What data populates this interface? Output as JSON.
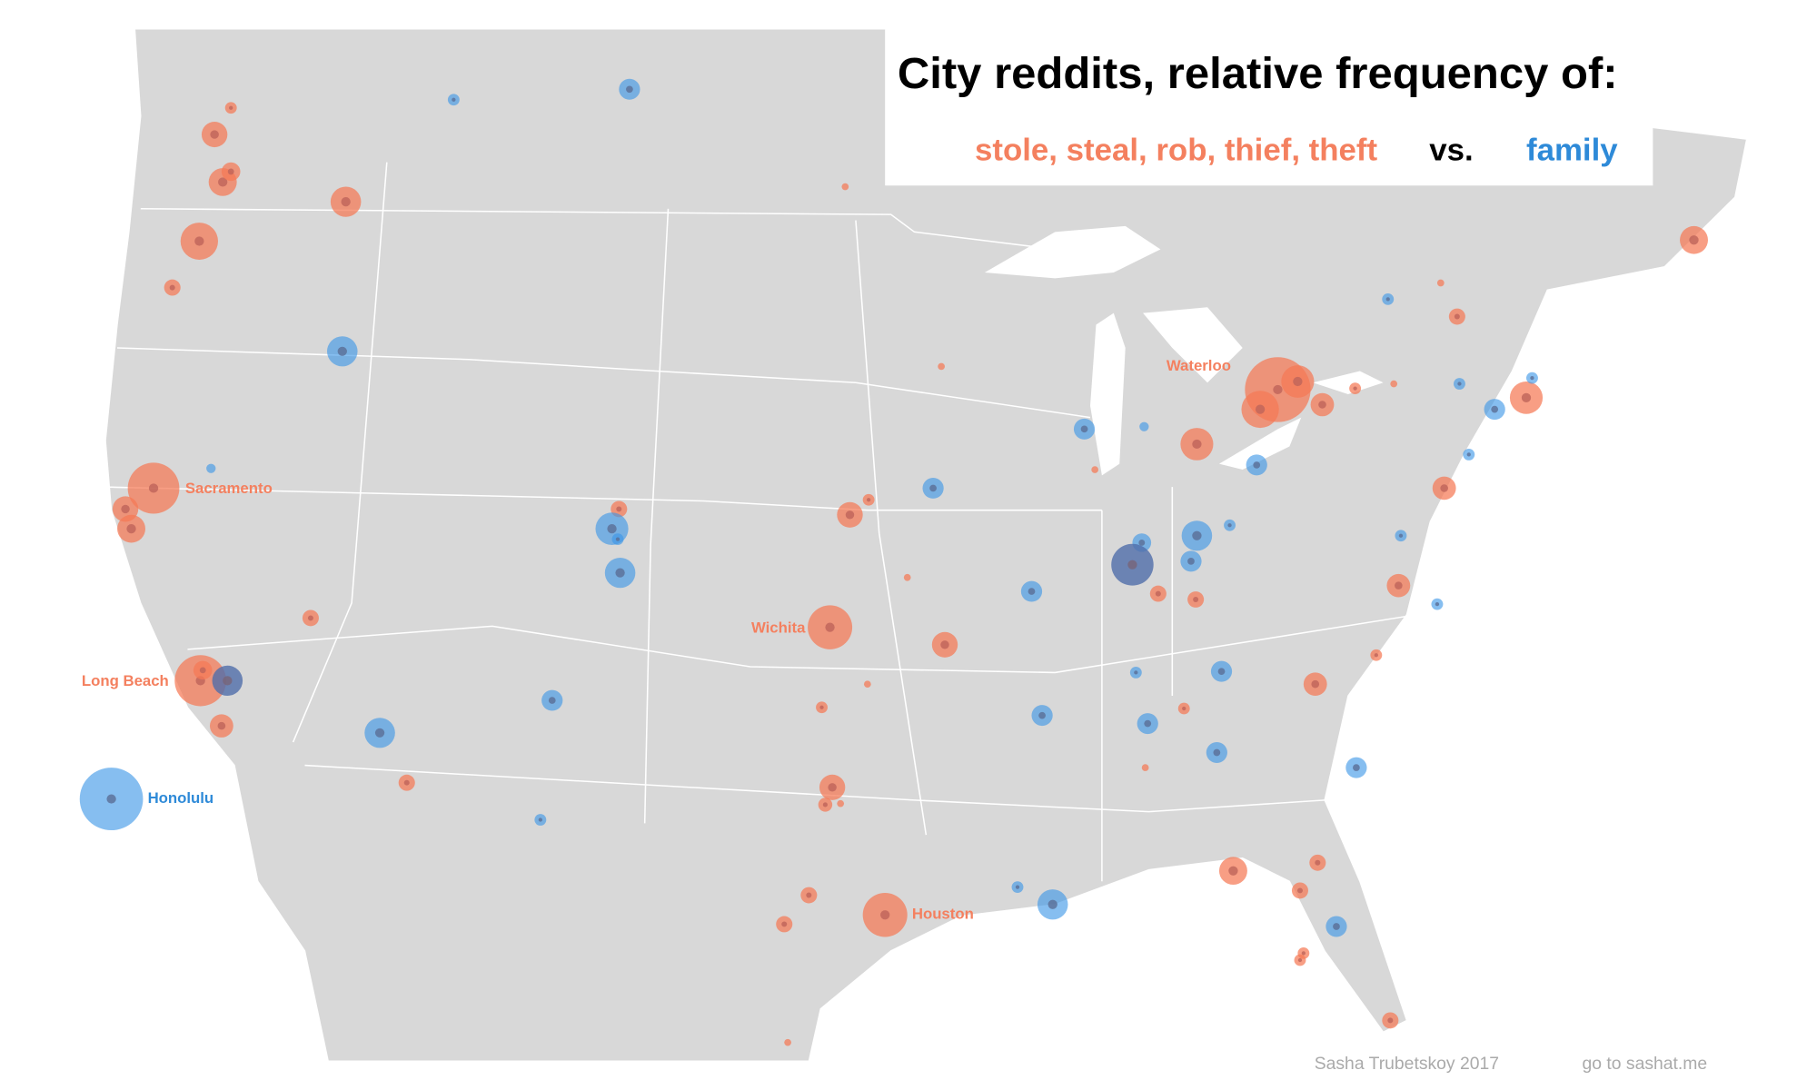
{
  "title": "City reddits, relative frequency of:",
  "legend": {
    "theft": "stole, steal, rob, thief, theft",
    "vs": "vs.",
    "family": "family"
  },
  "city_labels": [
    "Waterloo",
    "Sacramento",
    "Wichita",
    "Long Beach",
    "Honolulu",
    "Houston"
  ],
  "footer": {
    "credit": "Sasha Trubetskoy 2017",
    "link": "go to sashat.me"
  }
}
